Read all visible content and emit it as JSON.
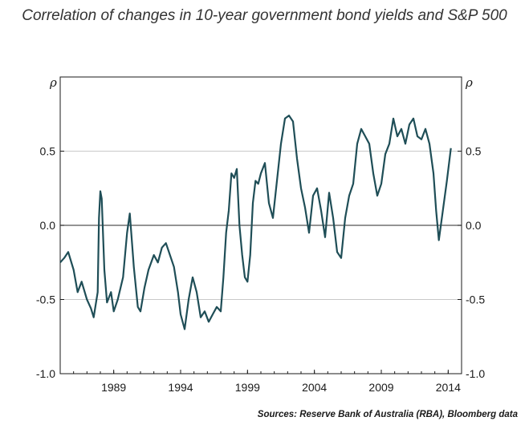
{
  "title": "Correlation of changes in 10-year government bond yields and S&P 500",
  "source": "Sources: Reserve Bank of Australia (RBA), Bloomberg data",
  "chart_data": {
    "type": "line",
    "xlabel": "",
    "ylabel_left": "ρ",
    "ylabel_right": "ρ",
    "xlim": [
      1985.0,
      2015.0
    ],
    "ylim": [
      -1.0,
      1.0
    ],
    "x_ticks": [
      1989,
      1994,
      1999,
      2004,
      2009,
      2014
    ],
    "x_tick_labels": [
      "1989",
      "1994",
      "1999",
      "2004",
      "2009",
      "2014"
    ],
    "y_ticks": [
      -1.0,
      -0.5,
      0.0,
      0.5
    ],
    "y_tick_labels": [
      "-1.0",
      "-0.5",
      "0.0",
      "0.5"
    ],
    "grid": "horizontal",
    "zero_line": true,
    "line_color": "#1f4e57",
    "series": [
      {
        "x": [
          1985.0,
          1985.3,
          1985.6,
          1986.0,
          1986.3,
          1986.6,
          1987.0,
          1987.3,
          1987.5,
          1987.8,
          1987.9,
          1988.0,
          1988.1,
          1988.3,
          1988.5,
          1988.8,
          1989.0,
          1989.3,
          1989.7,
          1990.0,
          1990.2,
          1990.5,
          1990.8,
          1991.0,
          1991.3,
          1991.6,
          1992.0,
          1992.3,
          1992.6,
          1992.9,
          1993.2,
          1993.5,
          1993.8,
          1994.0,
          1994.3,
          1994.6,
          1994.9,
          1995.2,
          1995.5,
          1995.8,
          1996.1,
          1996.4,
          1996.7,
          1997.0,
          1997.2,
          1997.4,
          1997.6,
          1997.8,
          1998.0,
          1998.2,
          1998.4,
          1998.6,
          1998.8,
          1999.0,
          1999.2,
          1999.4,
          1999.6,
          1999.8,
          2000.0,
          2000.3,
          2000.6,
          2000.9,
          2001.2,
          2001.5,
          2001.8,
          2002.1,
          2002.4,
          2002.7,
          2003.0,
          2003.3,
          2003.6,
          2003.9,
          2004.2,
          2004.5,
          2004.8,
          2005.1,
          2005.4,
          2005.7,
          2006.0,
          2006.3,
          2006.6,
          2006.9,
          2007.2,
          2007.5,
          2007.8,
          2008.1,
          2008.4,
          2008.7,
          2009.0,
          2009.3,
          2009.6,
          2009.9,
          2010.2,
          2010.5,
          2010.8,
          2011.1,
          2011.4,
          2011.7,
          2012.0,
          2012.3,
          2012.6,
          2012.9,
          2013.1,
          2013.3,
          2013.6,
          2013.9,
          2014.2
        ],
        "y": [
          -0.25,
          -0.22,
          -0.18,
          -0.3,
          -0.45,
          -0.38,
          -0.5,
          -0.56,
          -0.62,
          -0.45,
          0.05,
          0.23,
          0.18,
          -0.3,
          -0.52,
          -0.45,
          -0.58,
          -0.5,
          -0.35,
          -0.05,
          0.08,
          -0.28,
          -0.55,
          -0.58,
          -0.42,
          -0.3,
          -0.2,
          -0.25,
          -0.15,
          -0.12,
          -0.2,
          -0.28,
          -0.45,
          -0.6,
          -0.7,
          -0.5,
          -0.35,
          -0.45,
          -0.62,
          -0.58,
          -0.65,
          -0.6,
          -0.55,
          -0.58,
          -0.35,
          -0.05,
          0.1,
          0.35,
          0.32,
          0.38,
          0.0,
          -0.2,
          -0.35,
          -0.38,
          -0.2,
          0.15,
          0.3,
          0.28,
          0.35,
          0.42,
          0.15,
          0.05,
          0.3,
          0.55,
          0.72,
          0.74,
          0.7,
          0.45,
          0.25,
          0.12,
          -0.05,
          0.2,
          0.25,
          0.1,
          -0.08,
          0.22,
          0.05,
          -0.18,
          -0.22,
          0.05,
          0.2,
          0.28,
          0.55,
          0.65,
          0.6,
          0.55,
          0.35,
          0.2,
          0.28,
          0.48,
          0.55,
          0.72,
          0.6,
          0.65,
          0.55,
          0.68,
          0.72,
          0.6,
          0.58,
          0.65,
          0.55,
          0.35,
          0.1,
          -0.1,
          0.1,
          0.3,
          0.52
        ]
      }
    ]
  }
}
